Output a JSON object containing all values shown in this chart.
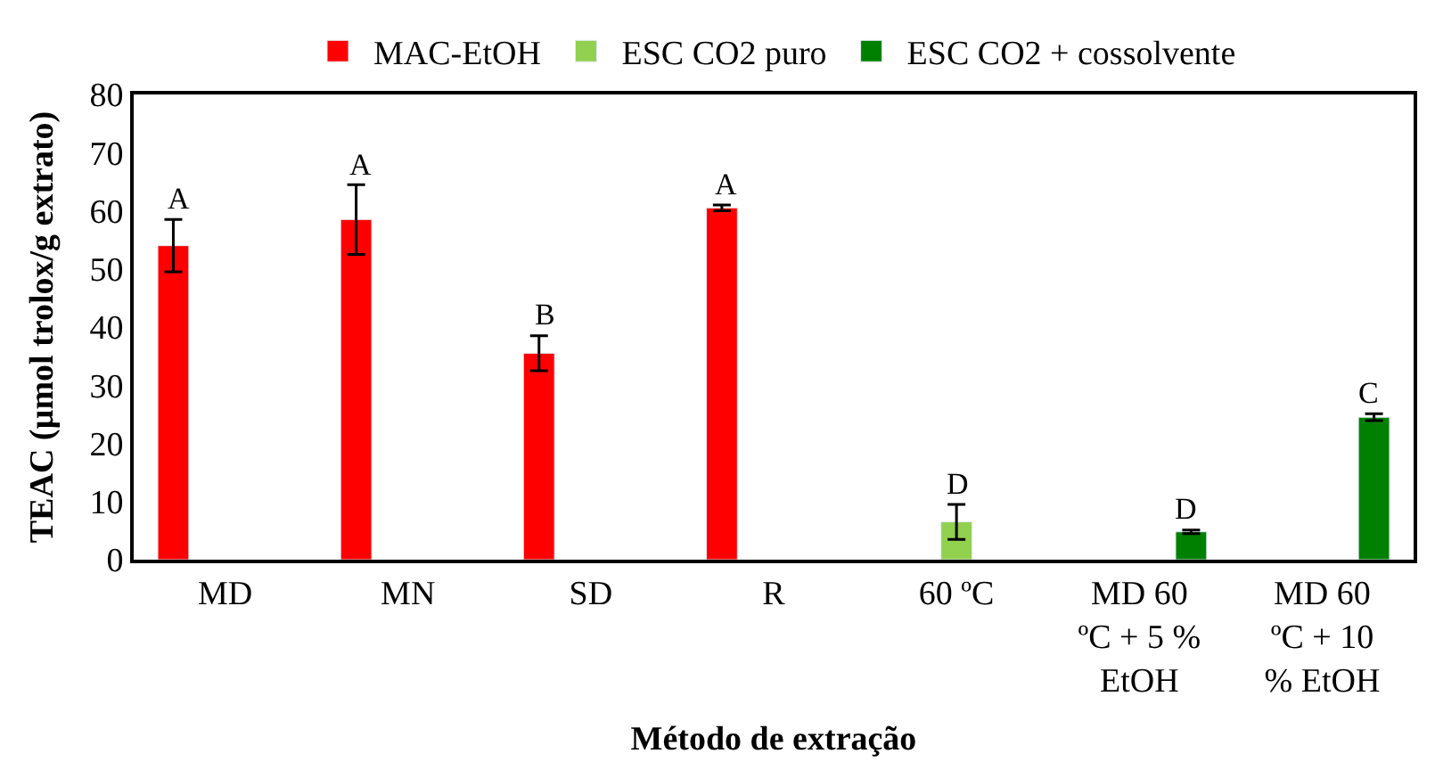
{
  "chart_data": {
    "type": "bar",
    "xlabel": "Método de extração",
    "ylabel": "TEAC (µmol trolox/g extrato)",
    "categories": [
      "MD",
      "MN",
      "SD",
      "R",
      "60 ºC",
      "MD 60 ºC + 5 % EtOH",
      "MD 60 ºC + 10 % EtOH"
    ],
    "series": [
      {
        "name": "MAC-EtOH",
        "color": "#ff0000",
        "values": [
          54,
          58.5,
          35.5,
          60.5,
          null,
          null,
          null
        ],
        "errors": [
          4.5,
          6,
          3,
          0.5,
          null,
          null,
          null
        ]
      },
      {
        "name": "ESC CO2 puro",
        "color": "#92d050",
        "values": [
          null,
          null,
          null,
          null,
          6.5,
          null,
          null
        ],
        "errors": [
          null,
          null,
          null,
          null,
          3,
          null,
          null
        ]
      },
      {
        "name": "ESC CO2 + cossolvente",
        "color": "#008000",
        "values": [
          null,
          null,
          null,
          null,
          null,
          4.8,
          24.5
        ],
        "errors": [
          null,
          null,
          null,
          null,
          null,
          0.3,
          0.6
        ]
      }
    ],
    "ylim": [
      0,
      80
    ],
    "yticks": [
      0,
      10,
      20,
      30,
      40,
      50,
      60,
      70,
      80
    ],
    "legend": "top",
    "annotations": [
      "A",
      "A",
      "B",
      "A",
      "D",
      "D",
      "C"
    ]
  }
}
